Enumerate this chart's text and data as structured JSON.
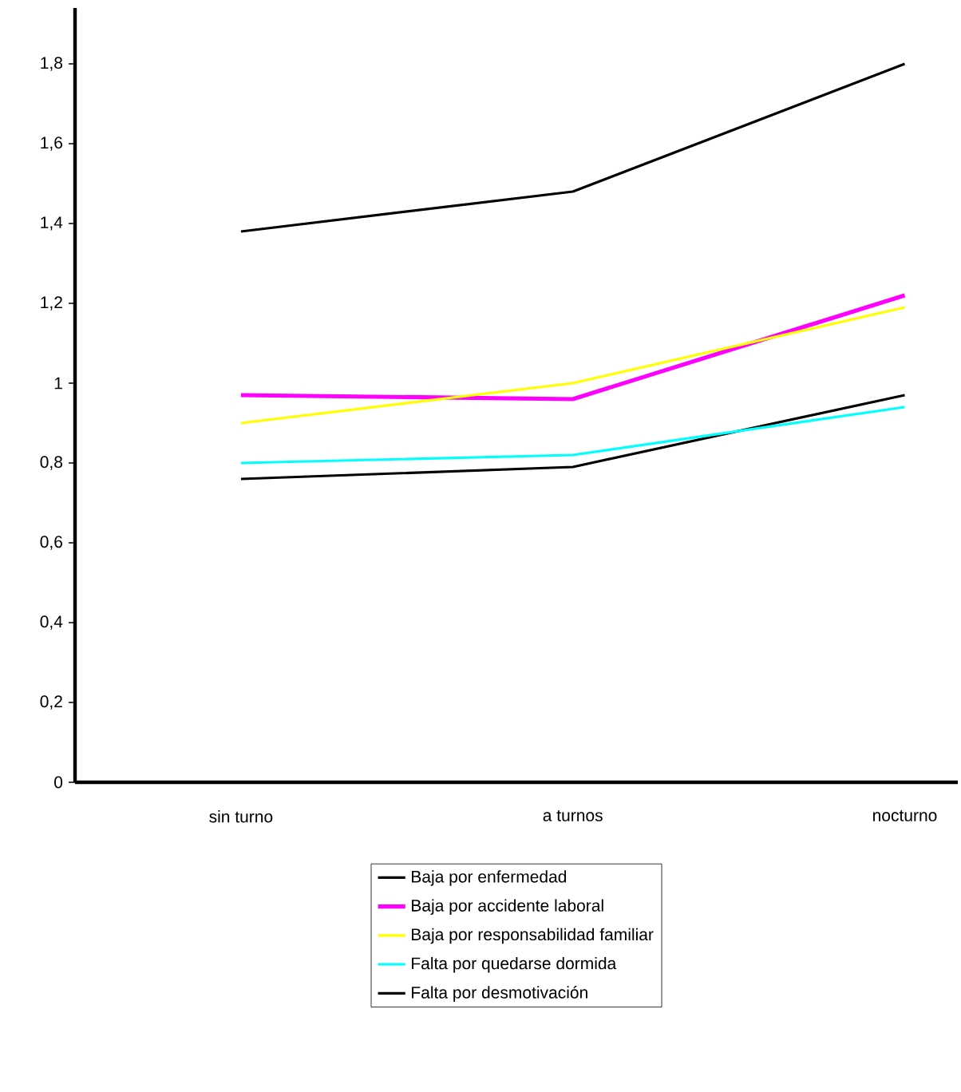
{
  "chart_data": {
    "type": "line",
    "categories": [
      "sin turno",
      "a turnos",
      "nocturno"
    ],
    "series": [
      {
        "name": "Baja por enfermedad",
        "color": "#000000",
        "values": [
          0.76,
          0.79,
          0.97
        ]
      },
      {
        "name": "Baja por accidente laboral",
        "color": "#ff00ff",
        "values": [
          0.97,
          0.96,
          1.22
        ]
      },
      {
        "name": "Baja por responsabilidad familiar",
        "color": "#ffff00",
        "values": [
          0.9,
          1.0,
          1.19
        ]
      },
      {
        "name": "Falta por quedarse dormida",
        "color": "#00ffff",
        "values": [
          0.8,
          0.82,
          0.94
        ]
      },
      {
        "name": "Falta por desmotivación",
        "color": "#000000",
        "values": [
          1.38,
          1.48,
          1.8
        ]
      }
    ],
    "ylim": [
      0,
      1.94
    ],
    "yticks": [
      0,
      {
        "value": 0.2,
        "label": "0,2"
      },
      {
        "value": 0.4,
        "label": "0,4"
      },
      {
        "value": 0.6,
        "label": "0,6"
      },
      {
        "value": 0.8,
        "label": "0,8"
      },
      1,
      {
        "value": 1.2,
        "label": "1,2"
      },
      {
        "value": 1.4,
        "label": "1,4"
      },
      {
        "value": 1.6,
        "label": "1,6"
      },
      {
        "value": 1.8,
        "label": "1,8"
      }
    ],
    "grid": false,
    "legend": "bottom",
    "marker": "none",
    "line_style": "solid"
  }
}
